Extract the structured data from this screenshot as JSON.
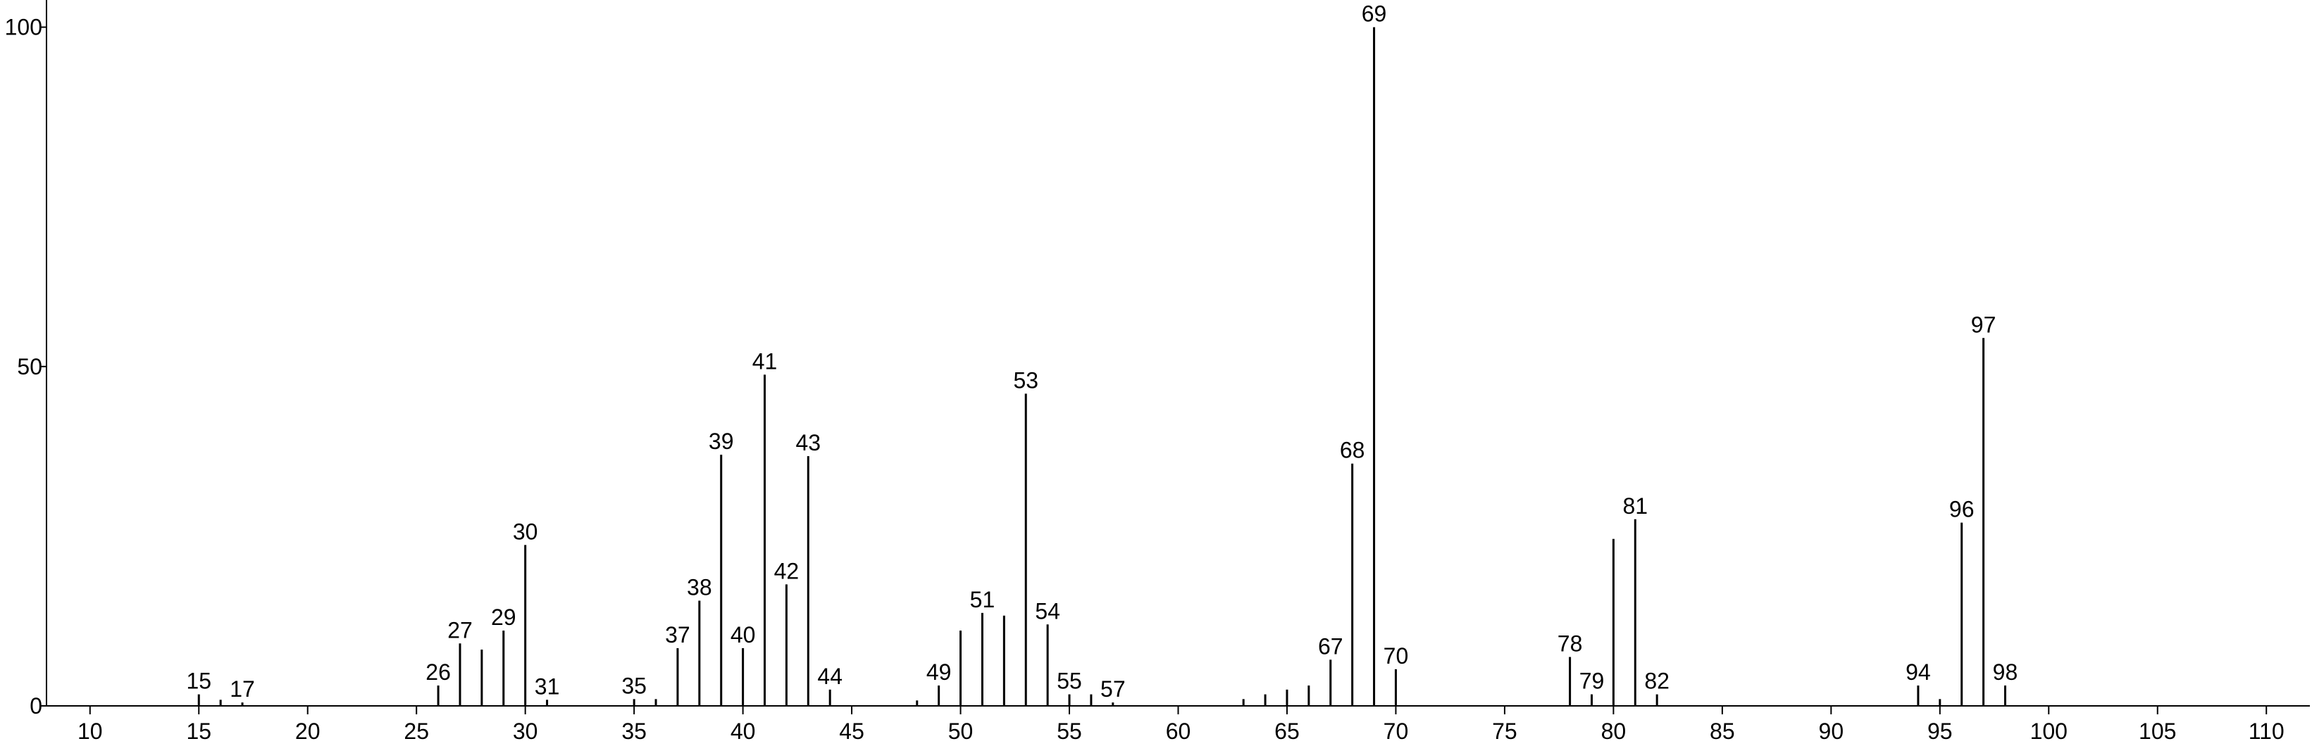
{
  "chart_data": {
    "type": "stem",
    "x": [
      15,
      16,
      17,
      26,
      27,
      28,
      29,
      30,
      31,
      35,
      36,
      37,
      38,
      39,
      40,
      41,
      42,
      43,
      44,
      48,
      49,
      50,
      51,
      52,
      53,
      54,
      55,
      56,
      57,
      63,
      64,
      65,
      66,
      67,
      68,
      69,
      70,
      78,
      79,
      80,
      81,
      82,
      94,
      95,
      96,
      97,
      98
    ],
    "values": [
      1.7,
      0.9,
      0.5,
      3,
      9.2,
      8.3,
      11.1,
      23.7,
      0.9,
      1,
      1,
      8.5,
      15.5,
      37,
      8.5,
      48.8,
      17.9,
      36.8,
      2.4,
      0.8,
      3,
      11.1,
      13.7,
      13.3,
      46,
      12,
      1.7,
      1.7,
      0.5,
      1,
      1.7,
      2.4,
      3,
      6.8,
      35.7,
      100,
      5.4,
      7.2,
      1.7,
      24.6,
      27.5,
      1.7,
      3,
      1,
      27,
      54.2,
      3
    ],
    "peak_labels": [
      15,
      null,
      17,
      26,
      27,
      null,
      29,
      30,
      31,
      35,
      null,
      37,
      38,
      39,
      40,
      41,
      42,
      43,
      44,
      null,
      49,
      null,
      51,
      null,
      53,
      54,
      55,
      null,
      57,
      null,
      null,
      null,
      null,
      67,
      68,
      69,
      70,
      78,
      79,
      null,
      81,
      82,
      94,
      null,
      96,
      97,
      98
    ],
    "color": "#000000",
    "xlim": [
      8,
      112
    ],
    "xticks": [
      10,
      15,
      20,
      25,
      30,
      35,
      40,
      45,
      50,
      55,
      60,
      65,
      70,
      75,
      80,
      85,
      90,
      95,
      100,
      105,
      110
    ],
    "ylim": [
      0,
      104
    ],
    "yticks": [
      0,
      50,
      100
    ]
  }
}
